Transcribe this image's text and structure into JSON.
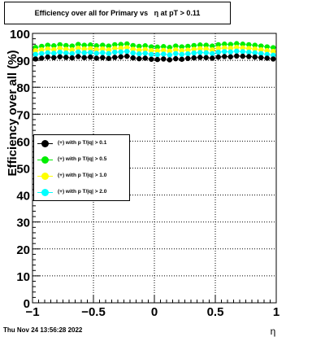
{
  "title": "Efficiency over all for Primary vs   η at pT > 0.11",
  "timestamp": "Thu Nov 24 13:56:28 2022",
  "chart_data": {
    "type": "scatter",
    "title": "Efficiency over all for Primary vs   η at pT > 0.11",
    "xlabel": "η",
    "ylabel": "Efficiency over all (%)",
    "xlim": [
      -1,
      1
    ],
    "ylim": [
      0,
      100
    ],
    "xticks": [
      -1,
      -0.5,
      0,
      0.5,
      1
    ],
    "xtick_labels": [
      "−1",
      "−0.5",
      "0",
      "0.5",
      "1"
    ],
    "yticks": [
      0,
      10,
      20,
      30,
      40,
      50,
      60,
      70,
      80,
      90,
      100
    ],
    "ytick_labels": [
      "0",
      "10",
      "20",
      "30",
      "40",
      "50",
      "60",
      "70",
      "80",
      "90",
      "100"
    ],
    "grid": true,
    "legend_position": "middle-left",
    "x": [
      -0.975,
      -0.925,
      -0.875,
      -0.825,
      -0.775,
      -0.725,
      -0.675,
      -0.625,
      -0.575,
      -0.525,
      -0.475,
      -0.425,
      -0.375,
      -0.325,
      -0.275,
      -0.225,
      -0.175,
      -0.125,
      -0.075,
      -0.025,
      0.025,
      0.075,
      0.125,
      0.175,
      0.225,
      0.275,
      0.325,
      0.375,
      0.425,
      0.475,
      0.525,
      0.575,
      0.625,
      0.675,
      0.725,
      0.775,
      0.825,
      0.875,
      0.925,
      0.975
    ],
    "series": [
      {
        "name": "(+) with p T/|q| > 0.1",
        "color": "#000000",
        "values": [
          90.5,
          90.8,
          91.2,
          91.0,
          91.3,
          91.1,
          90.9,
          91.4,
          91.0,
          91.2,
          90.8,
          91.0,
          90.7,
          91.1,
          91.3,
          91.5,
          90.9,
          90.6,
          90.8,
          90.4,
          90.3,
          90.5,
          90.2,
          90.6,
          90.4,
          90.7,
          90.9,
          91.1,
          91.0,
          90.8,
          91.2,
          91.4,
          91.3,
          91.6,
          91.5,
          91.4,
          91.2,
          91.0,
          90.8,
          90.5
        ]
      },
      {
        "name": "(+) with p T/|q| > 0.5",
        "color": "#00ee00",
        "values": [
          94.8,
          95.2,
          95.6,
          95.4,
          95.8,
          95.5,
          95.3,
          95.9,
          95.6,
          95.7,
          95.4,
          95.6,
          95.3,
          95.8,
          95.9,
          96.1,
          95.5,
          95.2,
          95.4,
          95.0,
          94.9,
          95.1,
          94.8,
          95.3,
          95.0,
          95.2,
          95.5,
          95.7,
          95.6,
          95.3,
          95.8,
          96.0,
          95.9,
          96.2,
          96.0,
          95.8,
          95.6,
          95.3,
          95.0,
          94.7
        ]
      },
      {
        "name": "(+) with p T/|q| > 1.0",
        "color": "#ffff00",
        "values": [
          93.6,
          93.9,
          94.2,
          94.0,
          94.4,
          94.1,
          93.9,
          94.5,
          94.2,
          94.3,
          94.0,
          94.2,
          93.9,
          94.4,
          94.5,
          94.7,
          94.1,
          93.8,
          94.0,
          93.6,
          93.5,
          93.7,
          93.4,
          93.9,
          93.6,
          93.8,
          94.1,
          94.3,
          94.2,
          93.9,
          94.4,
          94.6,
          94.5,
          94.8,
          94.6,
          94.4,
          94.2,
          93.9,
          93.6,
          93.3
        ]
      },
      {
        "name": "(+) with p T/|q| > 2.0",
        "color": "#00ffff",
        "values": [
          92.2,
          92.5,
          92.8,
          92.6,
          93.0,
          92.7,
          92.5,
          93.1,
          92.8,
          92.9,
          92.6,
          92.8,
          92.5,
          93.0,
          93.1,
          93.3,
          92.7,
          92.4,
          92.6,
          92.2,
          92.1,
          92.3,
          92.0,
          92.5,
          92.2,
          92.4,
          92.7,
          92.9,
          92.8,
          92.5,
          93.0,
          93.2,
          93.1,
          93.4,
          93.2,
          93.0,
          92.8,
          92.5,
          92.2,
          91.9
        ]
      }
    ]
  }
}
